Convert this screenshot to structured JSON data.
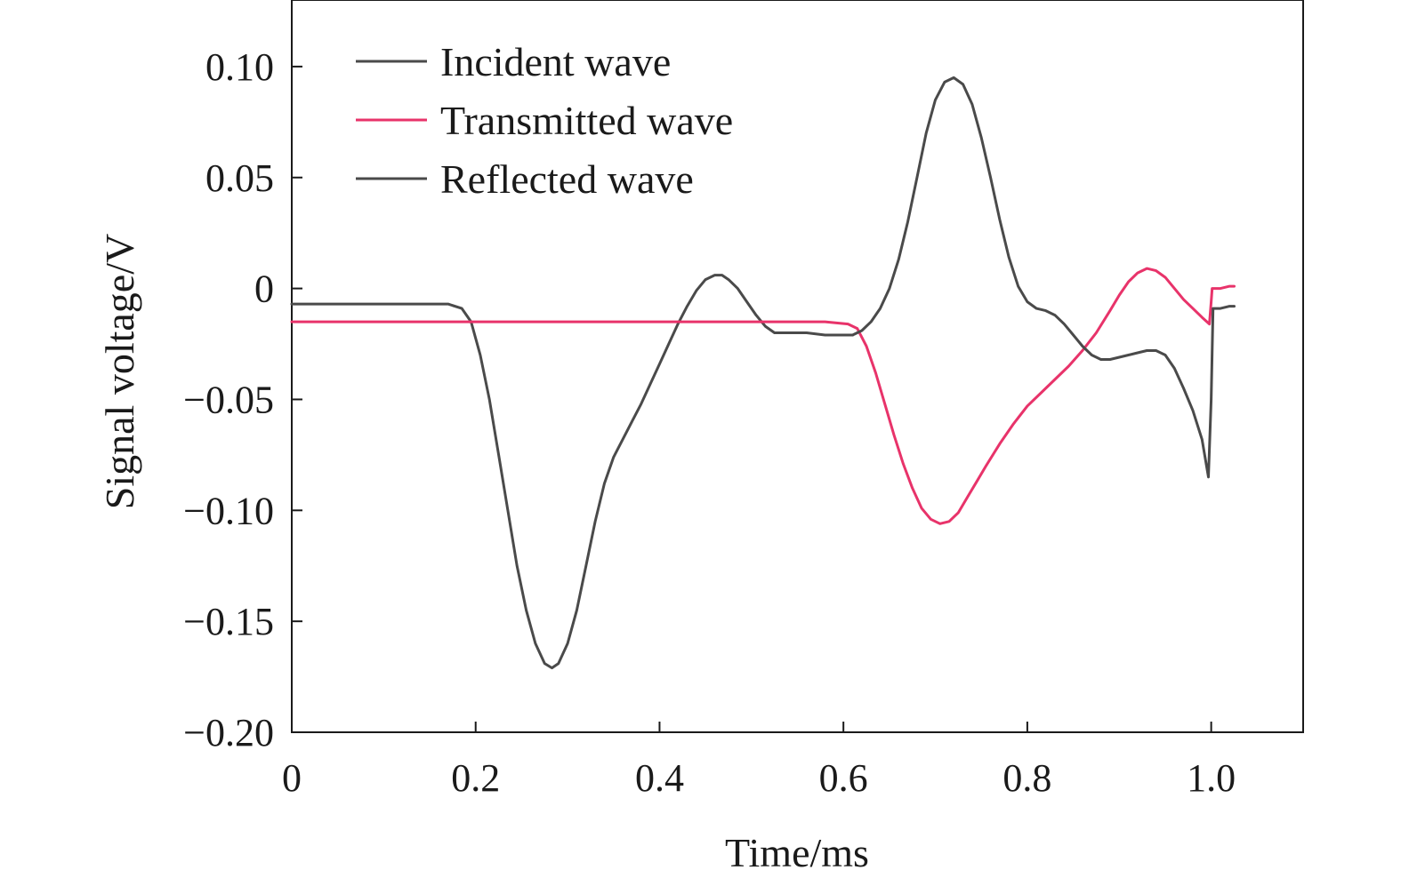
{
  "chart_data": {
    "type": "line",
    "xlabel": "Time/ms",
    "ylabel": "Signal voltage/V",
    "xlim": [
      0,
      1.1
    ],
    "ylim": [
      -0.2,
      0.13
    ],
    "x_ticks": [
      0,
      0.2,
      0.4,
      0.6,
      0.8,
      1.0
    ],
    "x_tick_labels": [
      "0",
      "0.2",
      "0.4",
      "0.6",
      "0.8",
      "1.0"
    ],
    "y_ticks": [
      0.1,
      0.05,
      0,
      -0.05,
      -0.1,
      -0.15,
      -0.2
    ],
    "y_tick_labels": [
      "0.10",
      "0.05",
      "0",
      "−0.05",
      "−0.10",
      "−0.15",
      "−0.20"
    ],
    "grid": false,
    "legend_position": "top-left",
    "series": [
      {
        "name": "Incident wave",
        "color": "#4a4a4a",
        "points": [
          [
            0,
            -0.007
          ],
          [
            0.05,
            -0.007
          ],
          [
            0.1,
            -0.007
          ],
          [
            0.15,
            -0.007
          ],
          [
            0.17,
            -0.007
          ],
          [
            0.185,
            -0.009
          ],
          [
            0.195,
            -0.015
          ],
          [
            0.205,
            -0.03
          ],
          [
            0.215,
            -0.05
          ],
          [
            0.225,
            -0.075
          ],
          [
            0.235,
            -0.1
          ],
          [
            0.245,
            -0.125
          ],
          [
            0.255,
            -0.145
          ],
          [
            0.265,
            -0.16
          ],
          [
            0.275,
            -0.169
          ],
          [
            0.283,
            -0.171
          ],
          [
            0.29,
            -0.169
          ],
          [
            0.3,
            -0.16
          ],
          [
            0.31,
            -0.145
          ],
          [
            0.32,
            -0.125
          ],
          [
            0.33,
            -0.105
          ],
          [
            0.34,
            -0.088
          ],
          [
            0.35,
            -0.076
          ],
          [
            0.36,
            -0.068
          ],
          [
            0.37,
            -0.06
          ],
          [
            0.38,
            -0.052
          ],
          [
            0.39,
            -0.043
          ],
          [
            0.4,
            -0.034
          ],
          [
            0.41,
            -0.025
          ],
          [
            0.42,
            -0.016
          ],
          [
            0.43,
            -0.008
          ],
          [
            0.44,
            -0.001
          ],
          [
            0.45,
            0.004
          ],
          [
            0.46,
            0.006
          ],
          [
            0.468,
            0.006
          ],
          [
            0.475,
            0.004
          ],
          [
            0.485,
            0.0
          ],
          [
            0.495,
            -0.006
          ],
          [
            0.505,
            -0.012
          ],
          [
            0.515,
            -0.017
          ],
          [
            0.525,
            -0.02
          ],
          [
            0.54,
            -0.02
          ],
          [
            0.56,
            -0.02
          ],
          [
            0.58,
            -0.021
          ],
          [
            0.6,
            -0.021
          ],
          [
            0.61,
            -0.021
          ]
        ]
      },
      {
        "name": "Transmitted wave",
        "color": "#e8336a",
        "points": [
          [
            0,
            -0.015
          ],
          [
            0.1,
            -0.015
          ],
          [
            0.2,
            -0.015
          ],
          [
            0.3,
            -0.015
          ],
          [
            0.4,
            -0.015
          ],
          [
            0.5,
            -0.015
          ],
          [
            0.58,
            -0.015
          ],
          [
            0.605,
            -0.016
          ],
          [
            0.615,
            -0.018
          ],
          [
            0.625,
            -0.026
          ],
          [
            0.635,
            -0.038
          ],
          [
            0.645,
            -0.052
          ],
          [
            0.655,
            -0.066
          ],
          [
            0.665,
            -0.079
          ],
          [
            0.675,
            -0.09
          ],
          [
            0.685,
            -0.099
          ],
          [
            0.695,
            -0.104
          ],
          [
            0.705,
            -0.106
          ],
          [
            0.715,
            -0.105
          ],
          [
            0.725,
            -0.101
          ],
          [
            0.735,
            -0.094
          ],
          [
            0.745,
            -0.087
          ],
          [
            0.755,
            -0.08
          ],
          [
            0.77,
            -0.07
          ],
          [
            0.785,
            -0.061
          ],
          [
            0.8,
            -0.053
          ],
          [
            0.815,
            -0.047
          ],
          [
            0.83,
            -0.041
          ],
          [
            0.845,
            -0.035
          ],
          [
            0.86,
            -0.028
          ],
          [
            0.875,
            -0.02
          ],
          [
            0.89,
            -0.01
          ],
          [
            0.9,
            -0.003
          ],
          [
            0.91,
            0.003
          ],
          [
            0.92,
            0.007
          ],
          [
            0.93,
            0.009
          ],
          [
            0.94,
            0.008
          ],
          [
            0.95,
            0.005
          ],
          [
            0.96,
            0.0
          ],
          [
            0.97,
            -0.005
          ],
          [
            0.98,
            -0.009
          ],
          [
            0.99,
            -0.013
          ],
          [
            0.998,
            -0.016
          ],
          [
            1.0,
            -0.006
          ],
          [
            1.001,
            0.0
          ],
          [
            1.01,
            0.0
          ],
          [
            1.02,
            0.001
          ],
          [
            1.025,
            0.001
          ]
        ]
      },
      {
        "name": "Reflected wave",
        "color": "#4a4a4a",
        "points": [
          [
            0.61,
            -0.021
          ],
          [
            0.62,
            -0.019
          ],
          [
            0.63,
            -0.015
          ],
          [
            0.64,
            -0.009
          ],
          [
            0.65,
            0.0
          ],
          [
            0.66,
            0.013
          ],
          [
            0.67,
            0.03
          ],
          [
            0.68,
            0.05
          ],
          [
            0.69,
            0.07
          ],
          [
            0.7,
            0.085
          ],
          [
            0.71,
            0.093
          ],
          [
            0.72,
            0.095
          ],
          [
            0.73,
            0.092
          ],
          [
            0.74,
            0.083
          ],
          [
            0.75,
            0.068
          ],
          [
            0.76,
            0.05
          ],
          [
            0.77,
            0.031
          ],
          [
            0.78,
            0.014
          ],
          [
            0.79,
            0.001
          ],
          [
            0.8,
            -0.006
          ],
          [
            0.81,
            -0.009
          ],
          [
            0.82,
            -0.01
          ],
          [
            0.83,
            -0.012
          ],
          [
            0.84,
            -0.016
          ],
          [
            0.85,
            -0.021
          ],
          [
            0.86,
            -0.026
          ],
          [
            0.87,
            -0.03
          ],
          [
            0.88,
            -0.032
          ],
          [
            0.89,
            -0.032
          ],
          [
            0.9,
            -0.031
          ],
          [
            0.91,
            -0.03
          ],
          [
            0.92,
            -0.029
          ],
          [
            0.93,
            -0.028
          ],
          [
            0.94,
            -0.028
          ],
          [
            0.95,
            -0.03
          ],
          [
            0.96,
            -0.036
          ],
          [
            0.97,
            -0.045
          ],
          [
            0.98,
            -0.055
          ],
          [
            0.99,
            -0.068
          ],
          [
            0.997,
            -0.085
          ],
          [
            1.0,
            -0.05
          ],
          [
            1.002,
            -0.009
          ],
          [
            1.01,
            -0.009
          ],
          [
            1.02,
            -0.008
          ],
          [
            1.025,
            -0.008
          ]
        ]
      }
    ]
  }
}
